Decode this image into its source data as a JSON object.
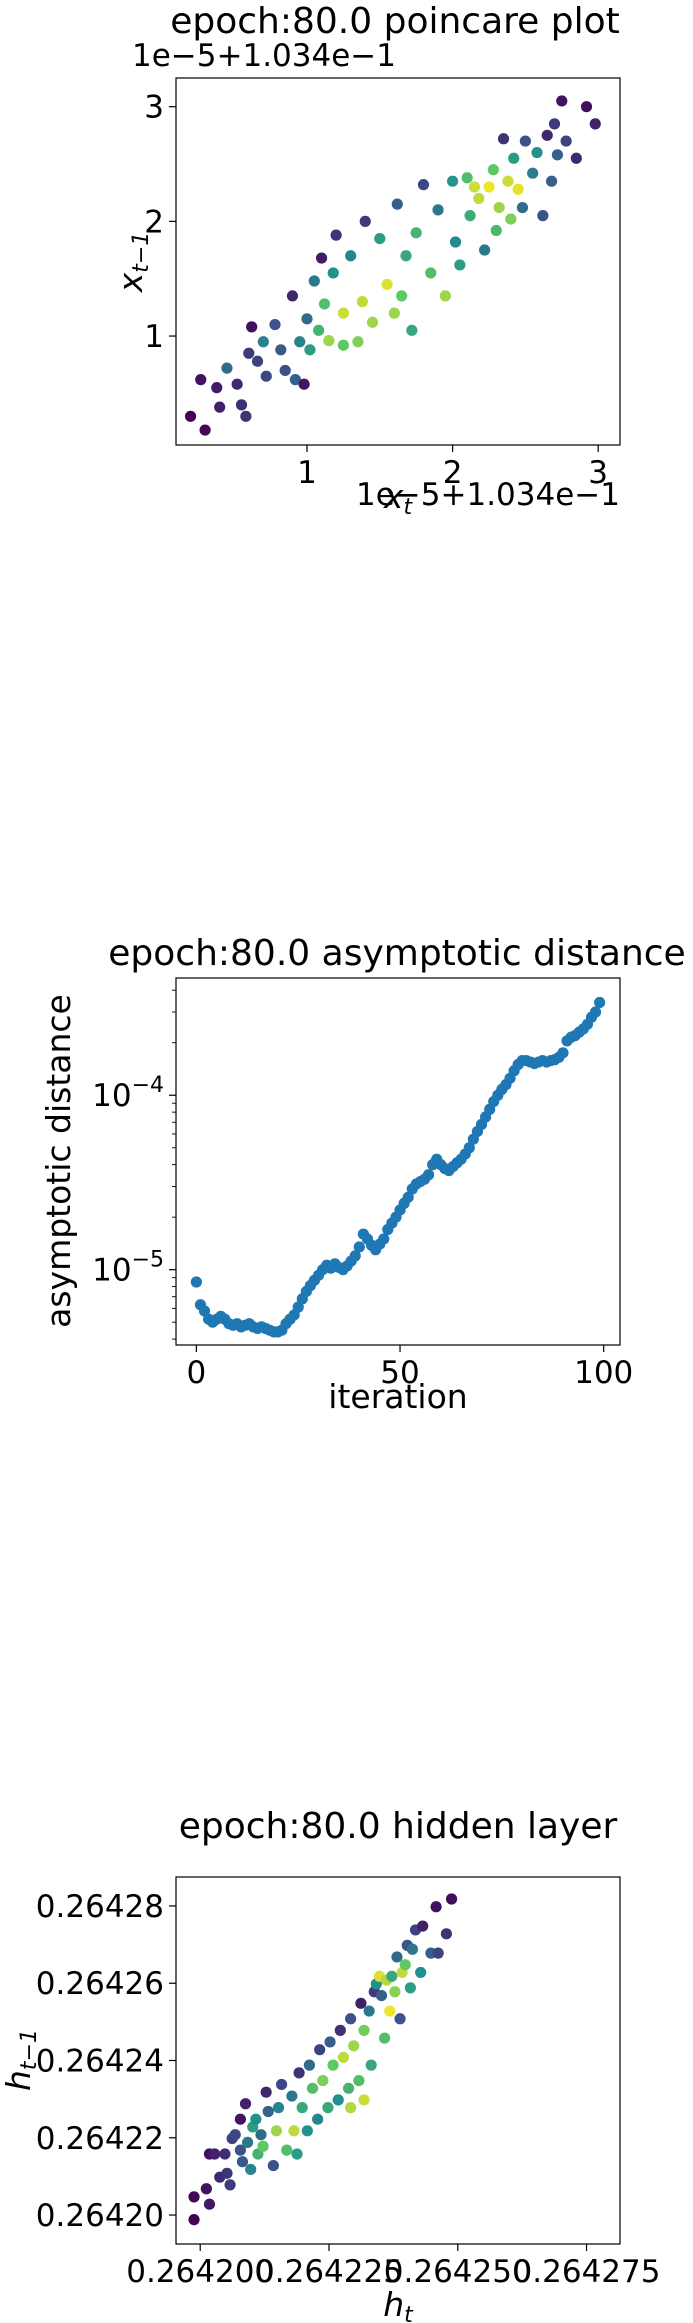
{
  "chart_data": [
    {
      "type": "scatter",
      "title": "epoch:80.0 poincare plot",
      "xlabel": "x_t",
      "ylabel": "x_{t−1}",
      "x_offset_label": "1e−5+1.034e−1",
      "y_offset_label": "1e−5+1.034e−1",
      "xlim": [
        0.1,
        3.15
      ],
      "ylim": [
        0.05,
        3.25
      ],
      "xticks": [
        1,
        2,
        3
      ],
      "xtick_labels": [
        "1",
        "2",
        "3"
      ],
      "yticks": [
        1,
        2,
        3
      ],
      "ytick_labels": [
        "1",
        "2",
        "3"
      ],
      "colormap": [
        "#440154",
        "#3b528b",
        "#21918c",
        "#5ec962",
        "#fde725"
      ],
      "points": [
        [
          0.2,
          0.3,
          0.0
        ],
        [
          0.3,
          0.18,
          0.02
        ],
        [
          0.27,
          0.62,
          0.05
        ],
        [
          0.38,
          0.55,
          0.08
        ],
        [
          0.4,
          0.38,
          0.1
        ],
        [
          0.52,
          0.58,
          0.12
        ],
        [
          0.55,
          0.4,
          0.14
        ],
        [
          0.58,
          0.3,
          0.16
        ],
        [
          0.6,
          0.85,
          0.18
        ],
        [
          0.62,
          1.08,
          0.04
        ],
        [
          0.66,
          0.78,
          0.2
        ],
        [
          0.72,
          0.65,
          0.22
        ],
        [
          0.78,
          1.1,
          0.25
        ],
        [
          0.82,
          0.88,
          0.28
        ],
        [
          0.85,
          0.7,
          0.24
        ],
        [
          0.9,
          1.35,
          0.12
        ],
        [
          0.92,
          0.62,
          0.3
        ],
        [
          0.95,
          0.95,
          0.45
        ],
        [
          0.98,
          0.58,
          0.06
        ],
        [
          1.0,
          1.15,
          0.35
        ],
        [
          1.02,
          0.88,
          0.55
        ],
        [
          1.05,
          1.48,
          0.4
        ],
        [
          1.08,
          1.05,
          0.65
        ],
        [
          1.1,
          1.68,
          0.08
        ],
        [
          1.12,
          1.28,
          0.7
        ],
        [
          1.15,
          0.96,
          0.85
        ],
        [
          1.18,
          1.55,
          0.5
        ],
        [
          1.2,
          1.88,
          0.15
        ],
        [
          1.25,
          0.92,
          0.75
        ],
        [
          1.3,
          1.7,
          0.45
        ],
        [
          1.35,
          0.95,
          0.8
        ],
        [
          1.38,
          1.3,
          0.9
        ],
        [
          1.4,
          2.0,
          0.18
        ],
        [
          1.45,
          1.12,
          0.85
        ],
        [
          1.5,
          1.85,
          0.55
        ],
        [
          1.55,
          1.45,
          0.95
        ],
        [
          1.6,
          1.2,
          0.85
        ],
        [
          1.62,
          2.15,
          0.3
        ],
        [
          1.68,
          1.7,
          0.6
        ],
        [
          1.72,
          1.05,
          0.6
        ],
        [
          1.75,
          1.9,
          0.65
        ],
        [
          1.8,
          2.32,
          0.22
        ],
        [
          1.85,
          1.55,
          0.7
        ],
        [
          1.9,
          2.1,
          0.4
        ],
        [
          1.95,
          1.35,
          0.85
        ],
        [
          2.0,
          2.35,
          0.52
        ],
        [
          2.02,
          1.82,
          0.48
        ],
        [
          2.05,
          1.62,
          0.55
        ],
        [
          2.1,
          2.38,
          0.7
        ],
        [
          2.12,
          2.05,
          0.62
        ],
        [
          2.18,
          2.2,
          0.9
        ],
        [
          2.22,
          1.75,
          0.4
        ],
        [
          2.25,
          2.3,
          0.98
        ],
        [
          2.28,
          2.45,
          0.75
        ],
        [
          2.3,
          1.92,
          0.68
        ],
        [
          2.32,
          2.12,
          0.85
        ],
        [
          2.35,
          2.72,
          0.15
        ],
        [
          2.38,
          2.35,
          0.92
        ],
        [
          2.4,
          2.02,
          0.8
        ],
        [
          2.42,
          2.55,
          0.55
        ],
        [
          2.45,
          2.28,
          0.96
        ],
        [
          2.48,
          2.12,
          0.35
        ],
        [
          2.5,
          2.7,
          0.25
        ],
        [
          2.55,
          2.42,
          0.42
        ],
        [
          2.58,
          2.6,
          0.5
        ],
        [
          2.62,
          2.05,
          0.25
        ],
        [
          2.65,
          2.75,
          0.12
        ],
        [
          2.68,
          2.35,
          0.3
        ],
        [
          2.7,
          2.85,
          0.18
        ],
        [
          2.72,
          2.58,
          0.3
        ],
        [
          2.75,
          3.05,
          0.05
        ],
        [
          2.78,
          2.7,
          0.2
        ],
        [
          2.85,
          2.55,
          0.12
        ],
        [
          2.92,
          3.0,
          0.03
        ],
        [
          2.98,
          2.85,
          0.1
        ],
        [
          0.45,
          0.72,
          0.35
        ],
        [
          0.7,
          0.95,
          0.45
        ],
        [
          1.25,
          1.2,
          0.92
        ],
        [
          1.65,
          1.35,
          0.75
        ],
        [
          2.15,
          2.3,
          0.92
        ]
      ]
    },
    {
      "type": "scatter",
      "title": "epoch:80.0 asymptotic distance",
      "xlabel": "iteration",
      "ylabel": "asymptotic distance",
      "xlim": [
        -5,
        104
      ],
      "ylim": [
        3.7e-06,
        0.00047
      ],
      "log_y": true,
      "xticks": [
        0,
        50,
        100
      ],
      "xtick_labels": [
        "0",
        "50",
        "100"
      ],
      "yticks": [
        1e-05,
        0.0001
      ],
      "color": "#1f77b4",
      "x": [
        0,
        1,
        2,
        3,
        4,
        5,
        6,
        7,
        8,
        9,
        10,
        11,
        12,
        13,
        14,
        15,
        16,
        17,
        18,
        19,
        20,
        21,
        22,
        23,
        24,
        25,
        26,
        27,
        28,
        29,
        30,
        31,
        32,
        33,
        34,
        35,
        36,
        37,
        38,
        39,
        40,
        41,
        42,
        43,
        44,
        45,
        46,
        47,
        48,
        49,
        50,
        51,
        52,
        53,
        54,
        55,
        56,
        57,
        58,
        59,
        60,
        61,
        62,
        63,
        64,
        65,
        66,
        67,
        68,
        69,
        70,
        71,
        72,
        73,
        74,
        75,
        76,
        77,
        78,
        79,
        80,
        81,
        82,
        83,
        84,
        85,
        86,
        87,
        88,
        89,
        90,
        91,
        92,
        93,
        94,
        95,
        96,
        97,
        98,
        99
      ],
      "y": [
        8.5e-06,
        6.3e-06,
        5.8e-06,
        5.2e-06,
        5e-06,
        5.2e-06,
        5.4e-06,
        5.2e-06,
        4.9e-06,
        4.8e-06,
        4.9e-06,
        4.7e-06,
        4.8e-06,
        4.9e-06,
        4.7e-06,
        4.6e-06,
        4.7e-06,
        4.6e-06,
        4.5e-06,
        4.4e-06,
        4.4e-06,
        4.5e-06,
        4.9e-06,
        5.2e-06,
        5.5e-06,
        6.1e-06,
        6.8e-06,
        7.5e-06,
        8.1e-06,
        8.7e-06,
        9.3e-06,
        1e-05,
        1.06e-05,
        1.02e-05,
        1.08e-05,
        1.03e-05,
        1e-05,
        1.05e-05,
        1.12e-05,
        1.2e-05,
        1.35e-05,
        1.6e-05,
        1.5e-05,
        1.38e-05,
        1.3e-05,
        1.4e-05,
        1.5e-05,
        1.7e-05,
        1.85e-05,
        2e-05,
        2.2e-05,
        2.4e-05,
        2.6e-05,
        2.9e-05,
        3.1e-05,
        3.2e-05,
        3.3e-05,
        3.5e-05,
        4e-05,
        4.3e-05,
        4e-05,
        3.8e-05,
        3.7e-05,
        3.9e-05,
        4.1e-05,
        4.3e-05,
        4.6e-05,
        5e-05,
        5.6e-05,
        6.2e-05,
        6.8e-05,
        7.5e-05,
        8.3e-05,
        9.2e-05,
        0.0001,
        0.000108,
        0.000115,
        0.000125,
        0.000138,
        0.00015,
        0.000158,
        0.000158,
        0.000155,
        0.000152,
        0.000155,
        0.000158,
        0.000155,
        0.000158,
        0.00016,
        0.000165,
        0.000175,
        0.000205,
        0.000215,
        0.00022,
        0.00023,
        0.00024,
        0.000255,
        0.00028,
        0.0003,
        0.00034
      ]
    },
    {
      "type": "scatter",
      "title": "epoch:80.0 hidden layer",
      "xlabel": "h_t",
      "ylabel": "h_{t−1}",
      "xlim": [
        0.2641953,
        0.2642815
      ],
      "ylim": [
        0.2641925,
        0.2642875
      ],
      "xticks": [
        0.2642,
        0.264225,
        0.26425,
        0.264275
      ],
      "xtick_labels": [
        "0.264200",
        "0.264225",
        "0.264250",
        "0.264275"
      ],
      "yticks": [
        0.2642,
        0.26422,
        0.26424,
        0.26426,
        0.26428
      ],
      "ytick_labels": [
        "0.26420",
        "0.26422",
        "0.26424",
        "0.26426",
        "0.26428"
      ],
      "colormap": [
        "#440154",
        "#3b528b",
        "#21918c",
        "#5ec962",
        "#fde725"
      ],
      "points": [
        [
          0.2641988,
          0.2641988,
          0.0
        ],
        [
          0.2641988,
          0.2642047,
          0.02
        ],
        [
          0.2642012,
          0.2642068,
          0.05
        ],
        [
          0.2642018,
          0.2642028,
          0.08
        ],
        [
          0.2642018,
          0.2642158,
          0.04
        ],
        [
          0.2642028,
          0.2642158,
          0.1
        ],
        [
          0.2642038,
          0.2642098,
          0.12
        ],
        [
          0.2642048,
          0.2642158,
          0.14
        ],
        [
          0.2642052,
          0.2642108,
          0.16
        ],
        [
          0.2642058,
          0.2642078,
          0.18
        ],
        [
          0.2642062,
          0.2642198,
          0.2
        ],
        [
          0.2642068,
          0.2642208,
          0.22
        ],
        [
          0.2642078,
          0.2642168,
          0.25
        ],
        [
          0.2642078,
          0.2642248,
          0.06
        ],
        [
          0.2642082,
          0.2642138,
          0.28
        ],
        [
          0.2642088,
          0.2642288,
          0.1
        ],
        [
          0.2642092,
          0.2642188,
          0.4
        ],
        [
          0.2642098,
          0.2642118,
          0.45
        ],
        [
          0.2642102,
          0.2642228,
          0.55
        ],
        [
          0.2642108,
          0.2642248,
          0.5
        ],
        [
          0.2642112,
          0.2642158,
          0.65
        ],
        [
          0.2642118,
          0.2642208,
          0.35
        ],
        [
          0.2642122,
          0.2642178,
          0.75
        ],
        [
          0.2642128,
          0.2642318,
          0.12
        ],
        [
          0.2642132,
          0.2642268,
          0.3
        ],
        [
          0.2642142,
          0.2642128,
          0.25
        ],
        [
          0.2642148,
          0.2642218,
          0.85
        ],
        [
          0.2642152,
          0.2642278,
          0.45
        ],
        [
          0.2642158,
          0.2642338,
          0.22
        ],
        [
          0.2642168,
          0.2642168,
          0.7
        ],
        [
          0.2642178,
          0.2642308,
          0.4
        ],
        [
          0.2642182,
          0.2642218,
          0.9
        ],
        [
          0.2642188,
          0.2642158,
          0.55
        ],
        [
          0.2642192,
          0.2642368,
          0.15
        ],
        [
          0.2642198,
          0.2642278,
          0.6
        ],
        [
          0.2642208,
          0.2642218,
          0.5
        ],
        [
          0.2642212,
          0.2642388,
          0.35
        ],
        [
          0.2642218,
          0.2642328,
          0.7
        ],
        [
          0.2642228,
          0.2642248,
          0.45
        ],
        [
          0.2642232,
          0.2642428,
          0.2
        ],
        [
          0.2642238,
          0.2642348,
          0.8
        ],
        [
          0.2642248,
          0.2642278,
          0.6
        ],
        [
          0.2642252,
          0.2642448,
          0.3
        ],
        [
          0.2642258,
          0.2642388,
          0.75
        ],
        [
          0.2642268,
          0.2642298,
          0.5
        ],
        [
          0.2642272,
          0.2642478,
          0.15
        ],
        [
          0.2642278,
          0.2642408,
          0.9
        ],
        [
          0.2642288,
          0.2642328,
          0.65
        ],
        [
          0.2642292,
          0.2642508,
          0.25
        ],
        [
          0.2642298,
          0.2642438,
          0.85
        ],
        [
          0.2642308,
          0.2642348,
          0.7
        ],
        [
          0.2642312,
          0.2642548,
          0.1
        ],
        [
          0.2642318,
          0.2642478,
          0.78
        ],
        [
          0.2642328,
          0.2642528,
          0.4
        ],
        [
          0.2642332,
          0.2642388,
          0.6
        ],
        [
          0.2642338,
          0.2642578,
          0.18
        ],
        [
          0.2642342,
          0.2642598,
          0.5
        ],
        [
          0.2642348,
          0.2642618,
          0.95
        ],
        [
          0.2642352,
          0.2642568,
          0.3
        ],
        [
          0.2642358,
          0.2642458,
          0.7
        ],
        [
          0.2642362,
          0.2642608,
          0.88
        ],
        [
          0.2642368,
          0.2642528,
          0.98
        ],
        [
          0.2642372,
          0.2642618,
          0.6
        ],
        [
          0.2642378,
          0.2642578,
          0.82
        ],
        [
          0.2642382,
          0.2642668,
          0.35
        ],
        [
          0.2642388,
          0.2642508,
          0.25
        ],
        [
          0.2642392,
          0.2642628,
          0.9
        ],
        [
          0.2642398,
          0.2642648,
          0.75
        ],
        [
          0.2642402,
          0.2642698,
          0.25
        ],
        [
          0.2642408,
          0.2642588,
          0.55
        ],
        [
          0.2642412,
          0.2642688,
          0.4
        ],
        [
          0.2642418,
          0.2642738,
          0.2
        ],
        [
          0.2642428,
          0.2642628,
          0.5
        ],
        [
          0.2642432,
          0.2642748,
          0.1
        ],
        [
          0.2642448,
          0.2642678,
          0.3
        ],
        [
          0.2642458,
          0.2642798,
          0.05
        ],
        [
          0.2642462,
          0.2642678,
          0.2
        ],
        [
          0.2642478,
          0.2642728,
          0.15
        ],
        [
          0.2642488,
          0.2642818,
          0.03
        ],
        [
          0.2642292,
          0.2642278,
          0.88
        ],
        [
          0.2642318,
          0.2642298,
          0.92
        ]
      ]
    }
  ]
}
